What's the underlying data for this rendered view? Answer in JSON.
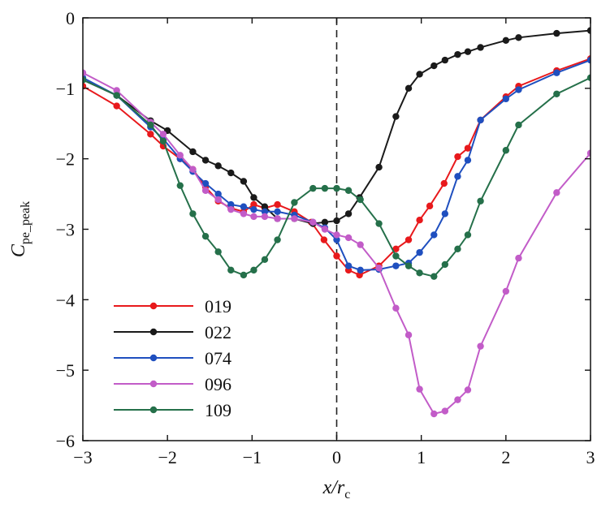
{
  "chart_data": {
    "type": "line",
    "xlabel": "x/r",
    "xlabel_sub": "c",
    "ylabel": "C",
    "ylabel_sub": "pe_peak",
    "xlim": [
      -3,
      3
    ],
    "ylim": [
      -6,
      0
    ],
    "xticks": [
      "−3",
      "−2",
      "−1",
      "0",
      "1",
      "2",
      "3"
    ],
    "yticks": [
      "0",
      "−1",
      "−2",
      "−3",
      "−4",
      "−5",
      "−6"
    ],
    "grid": false,
    "legend_position": "bottom-left",
    "reference_line_x": 0,
    "series": [
      {
        "name": "019",
        "color": "#e8191c",
        "points": [
          [
            -3.0,
            -0.97
          ],
          [
            -2.6,
            -1.25
          ],
          [
            -2.2,
            -1.65
          ],
          [
            -2.05,
            -1.82
          ],
          [
            -1.85,
            -2.0
          ],
          [
            -1.7,
            -2.15
          ],
          [
            -1.55,
            -2.4
          ],
          [
            -1.4,
            -2.6
          ],
          [
            -1.25,
            -2.7
          ],
          [
            -1.1,
            -2.75
          ],
          [
            -0.98,
            -2.65
          ],
          [
            -0.85,
            -2.7
          ],
          [
            -0.7,
            -2.65
          ],
          [
            -0.5,
            -2.75
          ],
          [
            -0.3,
            -2.9
          ],
          [
            -0.15,
            -3.15
          ],
          [
            0.0,
            -3.38
          ],
          [
            0.14,
            -3.58
          ],
          [
            0.27,
            -3.65
          ],
          [
            0.5,
            -3.52
          ],
          [
            0.7,
            -3.28
          ],
          [
            0.85,
            -3.15
          ],
          [
            0.98,
            -2.87
          ],
          [
            1.1,
            -2.67
          ],
          [
            1.27,
            -2.35
          ],
          [
            1.43,
            -1.97
          ],
          [
            1.55,
            -1.85
          ],
          [
            1.7,
            -1.45
          ],
          [
            2.0,
            -1.12
          ],
          [
            2.15,
            -0.97
          ],
          [
            2.6,
            -0.75
          ],
          [
            3.0,
            -0.58
          ]
        ]
      },
      {
        "name": "022",
        "color": "#1a1a1a",
        "points": [
          [
            -3.0,
            -0.88
          ],
          [
            -2.6,
            -1.1
          ],
          [
            -2.2,
            -1.46
          ],
          [
            -2.0,
            -1.6
          ],
          [
            -1.7,
            -1.9
          ],
          [
            -1.55,
            -2.02
          ],
          [
            -1.4,
            -2.1
          ],
          [
            -1.25,
            -2.2
          ],
          [
            -1.1,
            -2.32
          ],
          [
            -0.98,
            -2.55
          ],
          [
            -0.85,
            -2.68
          ],
          [
            -0.7,
            -2.85
          ],
          [
            -0.5,
            -2.85
          ],
          [
            -0.28,
            -2.92
          ],
          [
            -0.14,
            -2.9
          ],
          [
            0.0,
            -2.88
          ],
          [
            0.14,
            -2.78
          ],
          [
            0.27,
            -2.55
          ],
          [
            0.5,
            -2.12
          ],
          [
            0.7,
            -1.4
          ],
          [
            0.85,
            -1.0
          ],
          [
            0.98,
            -0.8
          ],
          [
            1.15,
            -0.68
          ],
          [
            1.28,
            -0.6
          ],
          [
            1.43,
            -0.52
          ],
          [
            1.55,
            -0.48
          ],
          [
            1.7,
            -0.42
          ],
          [
            2.0,
            -0.32
          ],
          [
            2.15,
            -0.28
          ],
          [
            2.6,
            -0.22
          ],
          [
            3.0,
            -0.18
          ]
        ]
      },
      {
        "name": "074",
        "color": "#1f4fbf",
        "points": [
          [
            -3.0,
            -0.85
          ],
          [
            -2.6,
            -1.1
          ],
          [
            -2.2,
            -1.55
          ],
          [
            -2.05,
            -1.72
          ],
          [
            -1.85,
            -2.0
          ],
          [
            -1.7,
            -2.18
          ],
          [
            -1.55,
            -2.35
          ],
          [
            -1.4,
            -2.5
          ],
          [
            -1.25,
            -2.65
          ],
          [
            -1.1,
            -2.68
          ],
          [
            -0.98,
            -2.72
          ],
          [
            -0.85,
            -2.75
          ],
          [
            -0.7,
            -2.75
          ],
          [
            -0.5,
            -2.8
          ],
          [
            -0.28,
            -2.9
          ],
          [
            -0.14,
            -2.98
          ],
          [
            0.0,
            -3.15
          ],
          [
            0.14,
            -3.52
          ],
          [
            0.28,
            -3.58
          ],
          [
            0.5,
            -3.57
          ],
          [
            0.7,
            -3.52
          ],
          [
            0.85,
            -3.48
          ],
          [
            0.98,
            -3.33
          ],
          [
            1.15,
            -3.08
          ],
          [
            1.28,
            -2.78
          ],
          [
            1.43,
            -2.25
          ],
          [
            1.55,
            -2.02
          ],
          [
            1.7,
            -1.45
          ],
          [
            2.0,
            -1.15
          ],
          [
            2.15,
            -1.02
          ],
          [
            2.6,
            -0.78
          ],
          [
            3.0,
            -0.6
          ]
        ]
      },
      {
        "name": "096",
        "color": "#c25cc8",
        "points": [
          [
            -3.0,
            -0.78
          ],
          [
            -2.6,
            -1.03
          ],
          [
            -2.2,
            -1.48
          ],
          [
            -2.05,
            -1.65
          ],
          [
            -1.85,
            -1.95
          ],
          [
            -1.7,
            -2.15
          ],
          [
            -1.55,
            -2.45
          ],
          [
            -1.4,
            -2.58
          ],
          [
            -1.25,
            -2.72
          ],
          [
            -1.1,
            -2.78
          ],
          [
            -0.98,
            -2.82
          ],
          [
            -0.85,
            -2.82
          ],
          [
            -0.7,
            -2.85
          ],
          [
            -0.5,
            -2.85
          ],
          [
            -0.28,
            -2.9
          ],
          [
            -0.14,
            -3.0
          ],
          [
            0.0,
            -3.08
          ],
          [
            0.14,
            -3.12
          ],
          [
            0.28,
            -3.22
          ],
          [
            0.5,
            -3.55
          ],
          [
            0.7,
            -4.12
          ],
          [
            0.85,
            -4.5
          ],
          [
            0.98,
            -5.27
          ],
          [
            1.15,
            -5.62
          ],
          [
            1.28,
            -5.58
          ],
          [
            1.43,
            -5.42
          ],
          [
            1.55,
            -5.28
          ],
          [
            1.7,
            -4.66
          ],
          [
            2.0,
            -3.88
          ],
          [
            2.15,
            -3.41
          ],
          [
            2.6,
            -2.48
          ],
          [
            3.0,
            -1.92
          ]
        ]
      },
      {
        "name": "109",
        "color": "#25704a",
        "points": [
          [
            -3.0,
            -0.88
          ],
          [
            -2.6,
            -1.1
          ],
          [
            -2.2,
            -1.52
          ],
          [
            -2.05,
            -1.75
          ],
          [
            -1.85,
            -2.38
          ],
          [
            -1.7,
            -2.78
          ],
          [
            -1.55,
            -3.1
          ],
          [
            -1.4,
            -3.32
          ],
          [
            -1.25,
            -3.58
          ],
          [
            -1.1,
            -3.65
          ],
          [
            -0.98,
            -3.58
          ],
          [
            -0.85,
            -3.43
          ],
          [
            -0.7,
            -3.15
          ],
          [
            -0.5,
            -2.62
          ],
          [
            -0.28,
            -2.42
          ],
          [
            -0.14,
            -2.42
          ],
          [
            0.0,
            -2.42
          ],
          [
            0.14,
            -2.45
          ],
          [
            0.28,
            -2.58
          ],
          [
            0.5,
            -2.92
          ],
          [
            0.7,
            -3.38
          ],
          [
            0.85,
            -3.52
          ],
          [
            0.98,
            -3.62
          ],
          [
            1.15,
            -3.67
          ],
          [
            1.28,
            -3.5
          ],
          [
            1.43,
            -3.28
          ],
          [
            1.55,
            -3.08
          ],
          [
            1.7,
            -2.6
          ],
          [
            2.0,
            -1.88
          ],
          [
            2.15,
            -1.52
          ],
          [
            2.6,
            -1.08
          ],
          [
            3.0,
            -0.85
          ]
        ]
      }
    ]
  }
}
